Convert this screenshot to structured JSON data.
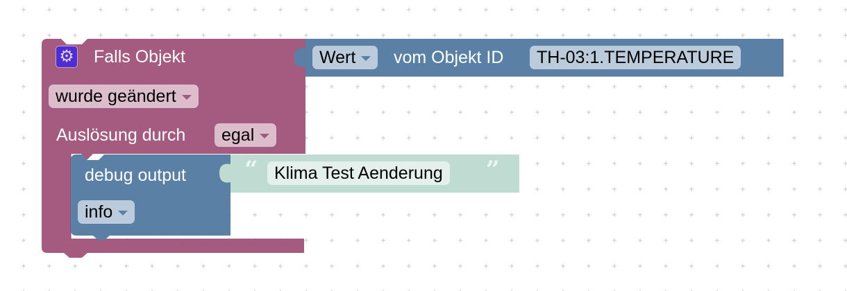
{
  "event_block": {
    "title": "Falls Objekt",
    "icon": "gear-icon",
    "condition": "wurde geändert",
    "trigger_label": "Auslösung durch",
    "trigger_value": "egal",
    "color": "#a55b80"
  },
  "value_block": {
    "attribute": "Wert",
    "label": "vom Objekt ID",
    "object_id": "TH-03:1.TEMPERATURE",
    "color": "#5b80a5"
  },
  "debug_block": {
    "label": "debug output",
    "level": "info",
    "color": "#5b80a5"
  },
  "text_block": {
    "open_quote": "“",
    "text": "Klima Test Aenderung",
    "close_quote": "”",
    "color": "#bfdcd2"
  }
}
